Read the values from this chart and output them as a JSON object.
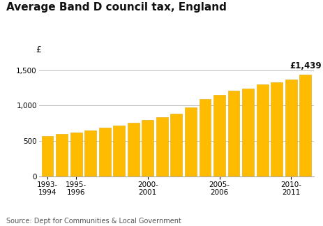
{
  "title": "Average Band D council tax, England",
  "ylabel_symbol": "£",
  "source": "Source: Dept for Communities & Local Government",
  "annotation": "£1,439",
  "values": [
    568,
    596,
    618,
    649,
    688,
    718,
    753,
    800,
    832,
    888,
    975,
    1096,
    1149,
    1214,
    1246,
    1304,
    1332,
    1375,
    1439
  ],
  "xtick_positions": [
    0,
    2,
    7,
    12,
    17
  ],
  "xtick_labels": [
    "1993-\n1994",
    "1995-\n1996",
    "2000-\n2001",
    "2005-\n2006",
    "2010-\n2011"
  ],
  "bar_color": "#FFBB00",
  "bar_edge_color": "#E0A800",
  "ylim": [
    0,
    1600
  ],
  "yticks": [
    0,
    500,
    1000,
    1500
  ],
  "background_color": "#ffffff",
  "grid_color": "#bbbbbb",
  "title_fontsize": 11,
  "tick_fontsize": 7.5,
  "source_fontsize": 7,
  "annotation_fontsize": 8.5
}
